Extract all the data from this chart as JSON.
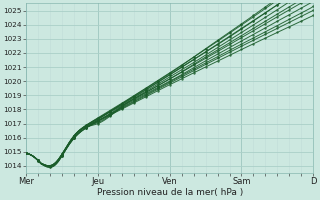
{
  "bg_color": "#cce8e0",
  "plot_bg_color": "#cce8e0",
  "grid_major_color": "#aacfc8",
  "grid_minor_color": "#c0ddd8",
  "line_color": "#1a5c2a",
  "ylim": [
    1013.5,
    1025.5
  ],
  "ylabel_ticks": [
    1014,
    1015,
    1016,
    1017,
    1018,
    1019,
    1020,
    1021,
    1022,
    1023,
    1024,
    1025
  ],
  "xlabel": "Pression niveau de la mer( hPa )",
  "xtick_labels": [
    "Mer",
    "Jeu",
    "Ven",
    "Sam",
    "D"
  ],
  "xtick_positions": [
    0,
    24,
    48,
    72,
    96
  ],
  "total_hours": 96
}
